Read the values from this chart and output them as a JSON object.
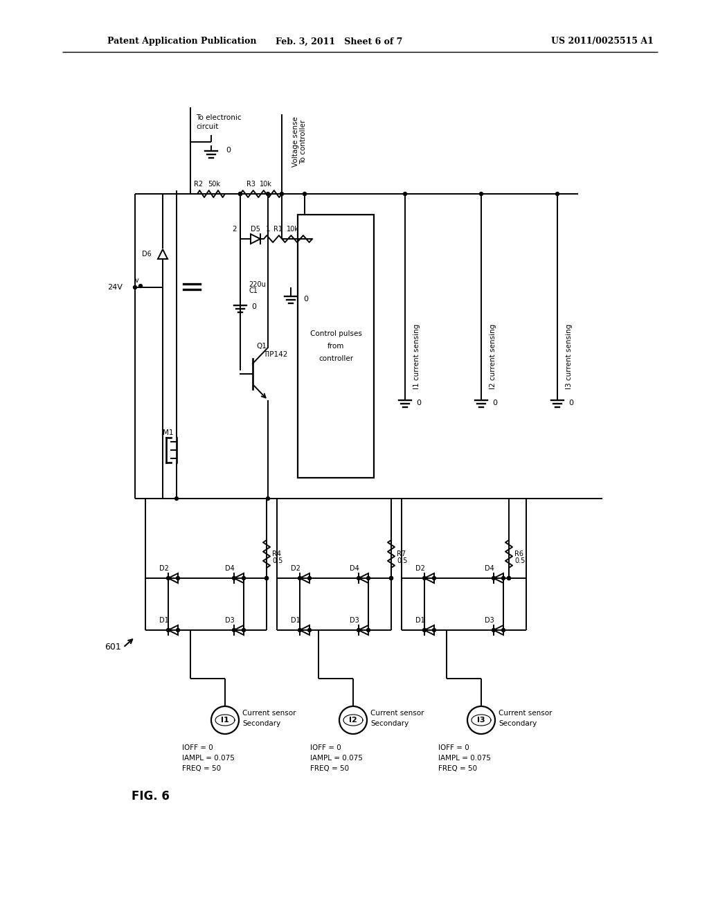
{
  "title_left": "Patent Application Publication",
  "title_mid": "Feb. 3, 2011   Sheet 6 of 7",
  "title_right": "US 2011/0025515 A1",
  "fig_label": "FIG. 6",
  "background": "#ffffff",
  "line_color": "#000000",
  "text_color": "#000000",
  "lw": 1.4
}
